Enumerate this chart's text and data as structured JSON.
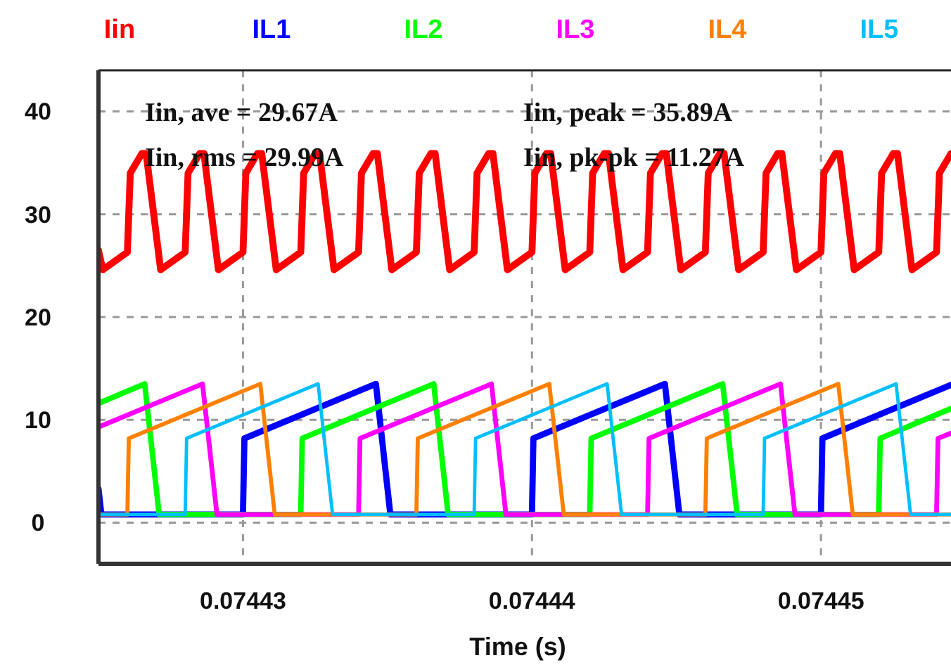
{
  "chart_data": {
    "type": "line",
    "xlabel": "Time (s)",
    "xlim": [
      0.074425,
      0.0744545
    ],
    "xticks": [
      0.07443,
      0.07444,
      0.07445
    ],
    "ylim": [
      -4,
      44
    ],
    "yticks": [
      0,
      10,
      20,
      30,
      40
    ],
    "grid": true,
    "legend": "top",
    "line_style": "solid",
    "marker": "none",
    "annotations": [
      "Iin, ave = 29.67A",
      "Iin, peak = 35.89A",
      "Iin, rms = 29.99A",
      "Iin, pk-pk = 11.27A"
    ],
    "series": [
      {
        "name": "Iin",
        "color": "#ff0000",
        "x": [
          0.074425,
          0.07442515,
          0.074426,
          0.0744261,
          0.0744265,
          0.07442665,
          0.07442715,
          0.074428,
          0.0744281,
          0.0744285,
          0.07442865,
          0.07442915,
          0.07443,
          0.0744301,
          0.0744305,
          0.07443065,
          0.07443115,
          0.074432,
          0.0744321,
          0.0744325,
          0.07443265,
          0.07443315,
          0.074434,
          0.0744341,
          0.0744345,
          0.07443465,
          0.07443515,
          0.074436,
          0.0744361,
          0.0744365,
          0.07443665,
          0.07443715,
          0.074438,
          0.0744381,
          0.0744385,
          0.07443865,
          0.07443915,
          0.07444,
          0.0744401,
          0.0744405,
          0.07444065,
          0.07444115,
          0.074442,
          0.0744421,
          0.0744425,
          0.07444265,
          0.07444315,
          0.074444,
          0.0744441,
          0.0744445,
          0.07444465,
          0.07444515,
          0.074446,
          0.0744461,
          0.0744465,
          0.07444665,
          0.07444715,
          0.074448,
          0.0744481,
          0.0744485,
          0.07444865,
          0.07444915,
          0.07445,
          0.0744501,
          0.0744505,
          0.07445065,
          0.07445115,
          0.074452,
          0.0744521,
          0.0744525,
          0.07445265,
          0.07445315,
          0.074454,
          0.0744541,
          0.0744545
        ],
        "values": [
          26.5,
          24.6,
          26.3,
          34,
          35.9,
          35.9,
          24.6,
          26.3,
          34,
          35.9,
          35.9,
          24.6,
          26.3,
          34,
          35.9,
          35.9,
          24.6,
          26.3,
          34,
          35.9,
          35.9,
          24.6,
          26.3,
          34,
          35.9,
          35.9,
          24.6,
          26.3,
          34,
          35.9,
          35.9,
          24.6,
          26.3,
          34,
          35.9,
          35.9,
          24.6,
          26.3,
          34,
          35.9,
          35.9,
          24.6,
          26.3,
          34,
          35.9,
          35.9,
          24.6,
          26.3,
          34,
          35.9,
          35.9,
          24.6,
          26.3,
          34,
          35.9,
          35.9,
          24.6,
          26.3,
          34,
          35.9,
          35.9,
          24.6,
          26.3,
          34,
          35.9,
          35.9,
          24.6,
          26.3,
          34,
          35.9,
          35.9,
          24.6,
          26.3,
          34,
          35.9
        ]
      },
      {
        "name": "IL1",
        "color": "#0000ff",
        "x": [
          0.074425,
          0.0744251,
          0.07443,
          0.07443005,
          0.0744346,
          0.0744351,
          0.07444,
          0.07444005,
          0.0744446,
          0.0744451,
          0.07445,
          0.07445005,
          0.0744545
        ],
        "values": [
          3.3,
          0.8,
          0.8,
          8.2,
          13.5,
          0.8,
          0.8,
          8.2,
          13.5,
          0.8,
          0.8,
          8.2,
          13.4
        ]
      },
      {
        "name": "IL2",
        "color": "#00ff00",
        "x": [
          0.074425,
          0.0744266,
          0.0744271,
          0.074432,
          0.07443205,
          0.0744366,
          0.0744371,
          0.074442,
          0.07444205,
          0.0744466,
          0.0744471,
          0.074452,
          0.07445205,
          0.0744545
        ],
        "values": [
          11.6,
          13.5,
          0.8,
          0.8,
          8.2,
          13.5,
          0.8,
          0.8,
          8.2,
          13.5,
          0.8,
          0.8,
          8.2,
          11.1
        ]
      },
      {
        "name": "IL3",
        "color": "#ff00ff",
        "x": [
          0.074425,
          0.0744286,
          0.0744291,
          0.074434,
          0.07443405,
          0.0744386,
          0.0744391,
          0.074444,
          0.07444405,
          0.0744486,
          0.0744491,
          0.074454,
          0.07445405,
          0.0744545
        ],
        "values": [
          9.3,
          13.5,
          0.8,
          0.8,
          8.2,
          13.5,
          0.8,
          0.8,
          8.2,
          13.5,
          0.8,
          0.8,
          8.2,
          8.7
        ]
      },
      {
        "name": "IL4",
        "color": "#ff8000",
        "x": [
          0.074425,
          0.074426,
          0.07442605,
          0.0744306,
          0.0744311,
          0.074436,
          0.07443605,
          0.0744406,
          0.0744411,
          0.074446,
          0.07444605,
          0.0744506,
          0.0744511,
          0.0744545
        ],
        "values": [
          0.8,
          0.8,
          8.2,
          13.5,
          0.8,
          0.8,
          8.2,
          13.5,
          0.8,
          0.8,
          8.2,
          13.5,
          0.8,
          0.8
        ]
      },
      {
        "name": "IL5",
        "color": "#00bfff",
        "x": [
          0.074425,
          0.074428,
          0.07442805,
          0.0744326,
          0.0744331,
          0.074438,
          0.07443805,
          0.0744426,
          0.0744431,
          0.074448,
          0.07444805,
          0.0744526,
          0.0744531,
          0.0744545
        ],
        "values": [
          0.8,
          0.8,
          8.2,
          13.5,
          0.8,
          0.8,
          8.2,
          13.5,
          0.8,
          0.8,
          8.2,
          13.5,
          0.8,
          0.8
        ]
      }
    ]
  }
}
